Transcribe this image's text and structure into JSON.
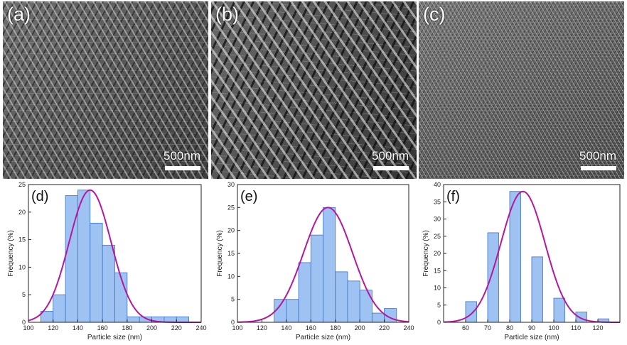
{
  "images": [
    {
      "label": "(a)",
      "scale_text": "500nm"
    },
    {
      "label": "(b)",
      "scale_text": "500nm"
    },
    {
      "label": "(c)",
      "scale_text": "500nm"
    }
  ],
  "colors": {
    "bar_fill": "#9ec3f3",
    "bar_stroke": "#3b73c4",
    "curve": "#b5179e"
  },
  "chart_data": [
    {
      "type": "bar",
      "panel_label": "(d)",
      "xlabel": "Particle size (nm)",
      "ylabel": "Frequency (%)",
      "xlim": [
        100,
        240
      ],
      "ylim": [
        0,
        25
      ],
      "xticks": [
        100,
        120,
        140,
        160,
        180,
        200,
        220,
        240
      ],
      "yticks": [
        0,
        5,
        10,
        15,
        20,
        25
      ],
      "bin_width": 10,
      "bins": [
        115,
        125,
        135,
        145,
        155,
        165,
        175,
        185,
        195,
        205,
        215,
        225
      ],
      "values": [
        2,
        5,
        23,
        24,
        18,
        14,
        9,
        1,
        1,
        1,
        1,
        1
      ],
      "fit": {
        "type": "gaussian",
        "peak": 24,
        "center": 150,
        "sigma": 17
      }
    },
    {
      "type": "bar",
      "panel_label": "(e)",
      "xlabel": "Particle size (nm)",
      "ylabel": "Frequency (%)",
      "xlim": [
        100,
        240
      ],
      "ylim": [
        0,
        30
      ],
      "xticks": [
        100,
        120,
        140,
        160,
        180,
        200,
        220,
        240
      ],
      "yticks": [
        0,
        5,
        10,
        15,
        20,
        25,
        30
      ],
      "bin_width": 10,
      "bins": [
        135,
        145,
        155,
        165,
        175,
        185,
        195,
        205,
        215,
        225
      ],
      "values": [
        5,
        5,
        13,
        19,
        25,
        11,
        9,
        7,
        2,
        3
      ],
      "fit": {
        "type": "gaussian",
        "peak": 25,
        "center": 174,
        "sigma": 20
      }
    },
    {
      "type": "bar",
      "panel_label": "(f)",
      "xlabel": "Particle size (nm)",
      "ylabel": "Frequency (%)",
      "xlim": [
        50,
        130
      ],
      "ylim": [
        0,
        40
      ],
      "xticks": [
        60,
        70,
        80,
        90,
        100,
        110,
        120
      ],
      "yticks": [
        0,
        5,
        10,
        15,
        20,
        25,
        30,
        35,
        40
      ],
      "bin_width": 5,
      "bins": [
        62.5,
        72.5,
        82.5,
        92.5,
        102.5,
        112.5,
        122.5
      ],
      "values": [
        6,
        26,
        38,
        19,
        7,
        3,
        1
      ],
      "fit": {
        "type": "gaussian",
        "peak": 38,
        "center": 86,
        "sigma": 10
      }
    }
  ]
}
